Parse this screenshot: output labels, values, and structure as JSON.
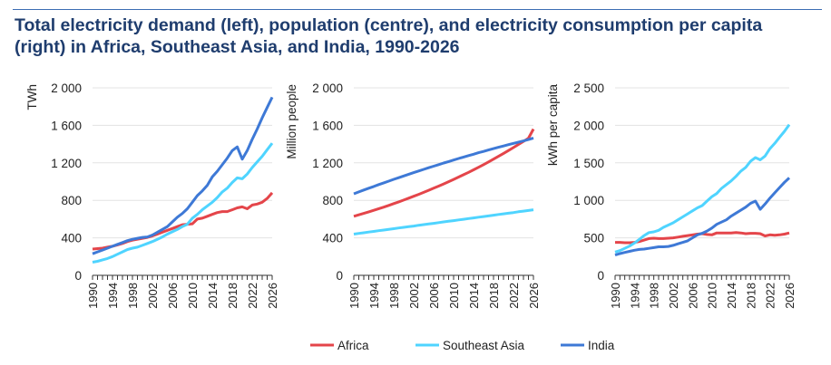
{
  "title": "Total electricity demand (left), population (centre), and electricity consumption per capita (right) in Africa, Southeast Asia, and India, 1990-2026",
  "colors": {
    "Africa": "#e4454a",
    "Southeast Asia": "#4fd4ff",
    "India": "#3e79d6",
    "grid": "#e3e3e3",
    "title": "#1f3d6e"
  },
  "legend": {
    "placement": "bottom",
    "items": [
      "Africa",
      "Southeast Asia",
      "India"
    ]
  },
  "chart_data": [
    {
      "type": "line",
      "ylabel": "TWh",
      "ylim": [
        0,
        2000
      ],
      "yticks": [
        0,
        400,
        800,
        1200,
        1600,
        2000
      ],
      "ytick_labels": [
        "0",
        "400",
        "800",
        "1 200",
        "1 600",
        "2 000"
      ],
      "xlim": [
        1990,
        2026
      ],
      "xtick_labels": [
        "1990",
        "1994",
        "1998",
        "2002",
        "2006",
        "2010",
        "2014",
        "2018",
        "2022",
        "2026"
      ],
      "grid": true,
      "series": [
        {
          "name": "Africa",
          "values": [
            280,
            285,
            290,
            300,
            310,
            325,
            340,
            360,
            375,
            385,
            395,
            405,
            420,
            440,
            460,
            480,
            500,
            520,
            540,
            545,
            550,
            600,
            610,
            630,
            650,
            670,
            680,
            680,
            700,
            720,
            730,
            710,
            750,
            760,
            780,
            820,
            880
          ]
        },
        {
          "name": "Southeast Asia",
          "values": [
            140,
            150,
            165,
            180,
            200,
            225,
            250,
            275,
            290,
            300,
            320,
            340,
            360,
            385,
            410,
            440,
            465,
            490,
            520,
            545,
            610,
            650,
            700,
            740,
            780,
            830,
            890,
            930,
            990,
            1040,
            1030,
            1080,
            1150,
            1210,
            1270,
            1340,
            1410
          ]
        },
        {
          "name": "India",
          "values": [
            230,
            250,
            270,
            290,
            310,
            330,
            350,
            370,
            385,
            395,
            405,
            410,
            430,
            460,
            490,
            520,
            570,
            620,
            660,
            710,
            780,
            850,
            900,
            960,
            1050,
            1110,
            1180,
            1250,
            1330,
            1370,
            1240,
            1330,
            1450,
            1560,
            1680,
            1790,
            1900
          ]
        }
      ]
    },
    {
      "type": "line",
      "ylabel": "Million people",
      "ylim": [
        0,
        2000
      ],
      "yticks": [
        0,
        400,
        800,
        1200,
        1600,
        2000
      ],
      "ytick_labels": [
        "0",
        "400",
        "800",
        "1 200",
        "1 600",
        "2 000"
      ],
      "xlim": [
        1990,
        2026
      ],
      "xtick_labels": [
        "1990",
        "1994",
        "1998",
        "2002",
        "2006",
        "2010",
        "2014",
        "2018",
        "2022",
        "2026"
      ],
      "grid": true,
      "series": [
        {
          "name": "Africa",
          "values": [
            630,
            645,
            661,
            677,
            694,
            711,
            728,
            746,
            765,
            784,
            803,
            823,
            843,
            864,
            885,
            907,
            929,
            952,
            975,
            999,
            1023,
            1048,
            1073,
            1099,
            1126,
            1153,
            1181,
            1210,
            1240,
            1270,
            1300,
            1331,
            1363,
            1396,
            1429,
            1463,
            1560
          ]
        },
        {
          "name": "Southeast Asia",
          "values": [
            440,
            447,
            454,
            462,
            469,
            476,
            483,
            490,
            498,
            505,
            512,
            519,
            526,
            534,
            541,
            548,
            555,
            562,
            570,
            577,
            584,
            591,
            598,
            606,
            613,
            620,
            627,
            634,
            642,
            649,
            656,
            663,
            670,
            678,
            685,
            692,
            700
          ]
        },
        {
          "name": "India",
          "values": [
            870,
            890,
            910,
            929,
            948,
            968,
            986,
            1005,
            1024,
            1042,
            1060,
            1078,
            1096,
            1113,
            1130,
            1148,
            1164,
            1181,
            1198,
            1214,
            1230,
            1246,
            1262,
            1277,
            1292,
            1308,
            1322,
            1337,
            1352,
            1366,
            1380,
            1394,
            1408,
            1421,
            1434,
            1448,
            1465
          ]
        }
      ]
    },
    {
      "type": "line",
      "ylabel": "kWh per capita",
      "ylim": [
        0,
        2500
      ],
      "yticks": [
        0,
        500,
        1000,
        1500,
        2000,
        2500
      ],
      "ytick_labels": [
        "0",
        "500",
        "1 000",
        "1 500",
        "2 000",
        "2 500"
      ],
      "xlim": [
        1990,
        2026
      ],
      "xtick_labels": [
        "1990",
        "1994",
        "1998",
        "2002",
        "2006",
        "2010",
        "2014",
        "2018",
        "2022",
        "2026"
      ],
      "grid": true,
      "series": [
        {
          "name": "Africa",
          "values": [
            440,
            440,
            435,
            435,
            440,
            450,
            470,
            490,
            495,
            490,
            490,
            495,
            500,
            510,
            520,
            530,
            540,
            550,
            555,
            545,
            540,
            565,
            565,
            565,
            565,
            570,
            565,
            555,
            560,
            560,
            555,
            525,
            540,
            535,
            540,
            550,
            565
          ]
        },
        {
          "name": "Southeast Asia",
          "values": [
            310,
            330,
            360,
            390,
            430,
            480,
            530,
            570,
            580,
            600,
            640,
            670,
            700,
            740,
            780,
            820,
            860,
            900,
            930,
            990,
            1050,
            1090,
            1160,
            1210,
            1260,
            1320,
            1390,
            1440,
            1520,
            1570,
            1540,
            1590,
            1690,
            1760,
            1840,
            1920,
            2010
          ]
        },
        {
          "name": "India",
          "values": [
            270,
            290,
            305,
            320,
            335,
            345,
            350,
            360,
            370,
            380,
            380,
            385,
            400,
            420,
            440,
            460,
            500,
            540,
            560,
            590,
            630,
            680,
            710,
            740,
            790,
            830,
            870,
            910,
            960,
            990,
            880,
            950,
            1030,
            1100,
            1170,
            1240,
            1300
          ]
        }
      ]
    }
  ]
}
